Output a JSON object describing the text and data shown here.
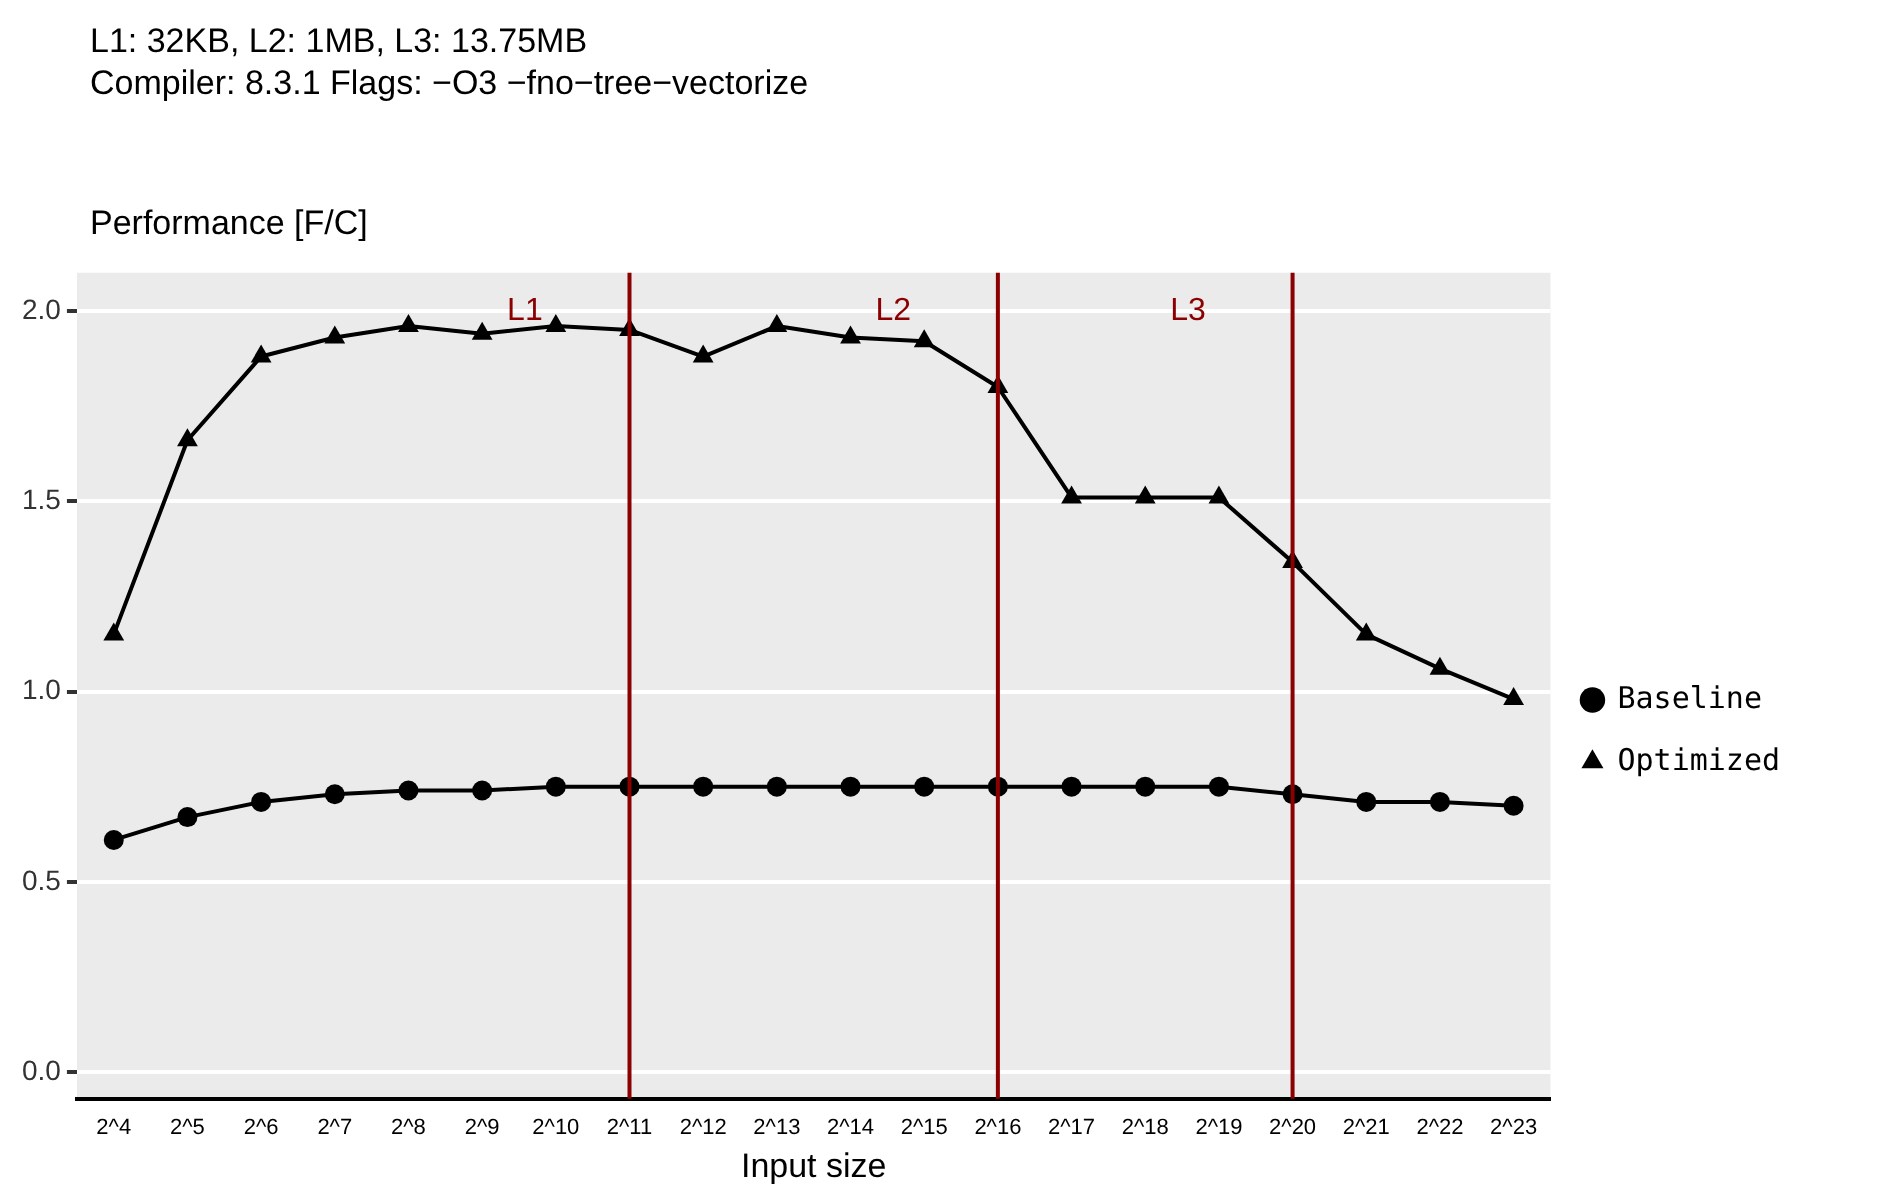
{
  "chart_data": {
    "type": "line",
    "title": "L1: 32KB, L2: 1MB, L3: 13.75MB",
    "subtitle": "Compiler: 8.3.1  Flags: −O3 −fno−tree−vectorize",
    "ylabel": "Performance [F/C]",
    "xlabel": "Input size",
    "categories": [
      "2^4",
      "2^5",
      "2^6",
      "2^7",
      "2^8",
      "2^9",
      "2^10",
      "2^11",
      "2^12",
      "2^13",
      "2^14",
      "2^15",
      "2^16",
      "2^17",
      "2^18",
      "2^19",
      "2^20",
      "2^21",
      "2^22",
      "2^23"
    ],
    "series": [
      {
        "name": "Baseline",
        "color": "#000000",
        "marker": "circle",
        "values": [
          0.61,
          0.67,
          0.71,
          0.73,
          0.74,
          0.74,
          0.75,
          0.75,
          0.75,
          0.75,
          0.75,
          0.75,
          0.75,
          0.75,
          0.75,
          0.75,
          0.73,
          0.71,
          0.71,
          0.7
        ]
      },
      {
        "name": "Optimized",
        "color": "#000000",
        "marker": "triangle",
        "values": [
          1.15,
          1.66,
          1.88,
          1.93,
          1.96,
          1.94,
          1.96,
          1.95,
          1.88,
          1.96,
          1.93,
          1.92,
          1.8,
          1.51,
          1.51,
          1.51,
          1.34,
          1.15,
          1.06,
          0.98
        ]
      }
    ],
    "ylim": [
      -0.07,
      2.1
    ],
    "yticks": [
      {
        "value": 0,
        "label": "0.0"
      },
      0.5,
      {
        "value": 1,
        "label": "1.0"
      },
      1.5,
      {
        "value": 2,
        "label": "2.0"
      }
    ],
    "ref_lines": [
      {
        "axis": "x",
        "value": "2^11",
        "label": "L1",
        "color": "#8b0000"
      },
      {
        "axis": "x",
        "value": "2^16",
        "label": "L2",
        "color": "#8b0000"
      },
      {
        "axis": "x",
        "value": "2^20",
        "label": "L3",
        "color": "#8b0000"
      }
    ],
    "grid": "y",
    "legend": "right",
    "line_style": "solid"
  }
}
